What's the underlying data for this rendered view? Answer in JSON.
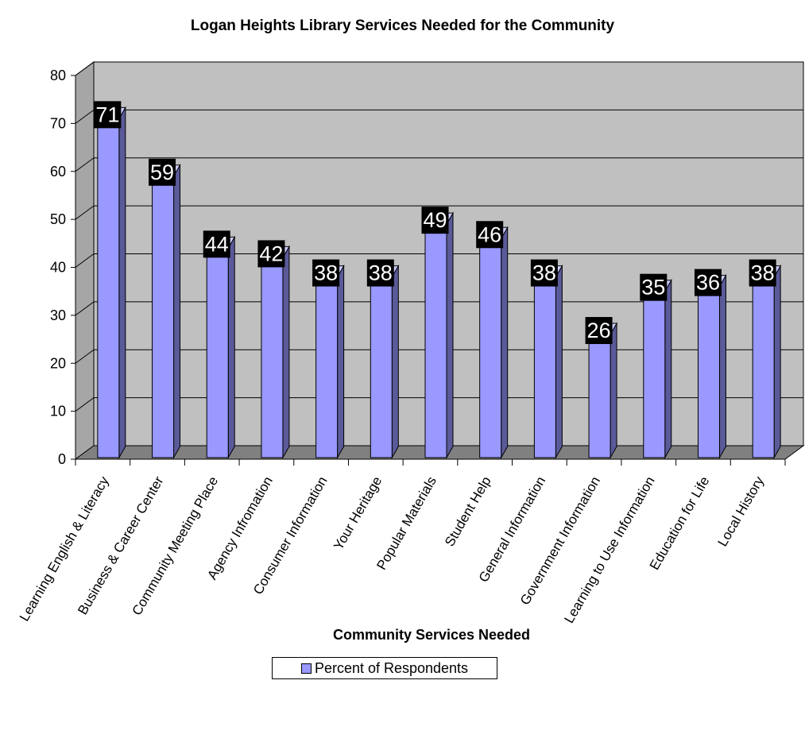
{
  "chart_data": {
    "type": "bar",
    "title": "Logan Heights Library Services Needed for the Community",
    "xlabel": "Community Services Needed",
    "ylabel": "",
    "ylim": [
      0,
      80
    ],
    "yticks": [
      0,
      10,
      20,
      30,
      40,
      50,
      60,
      70,
      80
    ],
    "grid": true,
    "legend": "bottom",
    "categories": [
      "Learning English & Literacy",
      "Business & Career Center",
      "Community Meeting Place",
      "Agency Infromation",
      "Consumer Information",
      "Your Heritage",
      "Popular Materials",
      "Student Help",
      "General Information",
      "Government Information",
      "Learning to Use Information",
      "Education for Life",
      "Local History"
    ],
    "series": [
      {
        "name": "Percent of Respondents",
        "values": [
          71,
          59,
          44,
          42,
          38,
          38,
          49,
          46,
          38,
          26,
          35,
          36,
          38
        ],
        "color": "#9999ff"
      }
    ],
    "colors": {
      "plot_back": "#c0c0c0",
      "floor": "#808080",
      "bar_front": "#9999ff",
      "bar_side": "#5a5a99",
      "bar_top": "#ccccff",
      "label_bg": "#000000",
      "label_text": "#ffffff"
    }
  }
}
